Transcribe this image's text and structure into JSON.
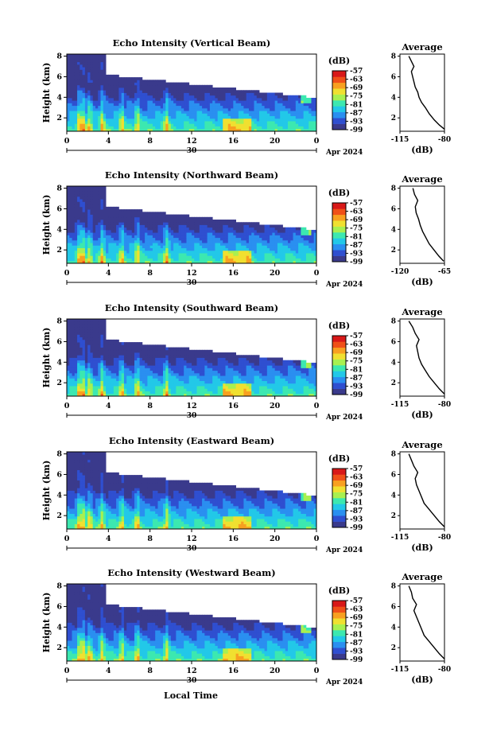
{
  "figure": {
    "xlabel": "Local Time",
    "date_label": "30",
    "month_label": "Apr 2024"
  },
  "chart_data": [
    {
      "type": "heatmap",
      "title": "Echo Intensity (Vertical Beam)",
      "ylabel": "Height (km)",
      "x_ticks": [
        "0",
        "4",
        "8",
        "12",
        "16",
        "20",
        "0"
      ],
      "x_range": [
        0,
        24
      ],
      "y_ticks": [
        "2",
        "4",
        "6",
        "8"
      ],
      "y_range": [
        0.7,
        8.2
      ],
      "colorbar": {
        "unit": "(dB)",
        "ticks": [
          "-57",
          "-63",
          "-69",
          "-75",
          "-81",
          "-87",
          "-93",
          "-99"
        ],
        "range": [
          -99,
          -57
        ]
      },
      "average": {
        "title": "Average",
        "xlabel": "(dB)",
        "x_ticks": [
          "-115",
          "-80"
        ],
        "x_range": [
          -115,
          -80
        ],
        "y_ticks": [
          "2",
          "4",
          "6",
          "8"
        ],
        "profile": [
          [
            -80,
            0.9
          ],
          [
            -84,
            1.3
          ],
          [
            -88,
            1.8
          ],
          [
            -92,
            2.4
          ],
          [
            -95,
            3.0
          ],
          [
            -98,
            3.5
          ],
          [
            -100,
            4.0
          ],
          [
            -101,
            4.5
          ],
          [
            -103,
            5.0
          ],
          [
            -104,
            5.5
          ],
          [
            -105,
            6.0
          ],
          [
            -106,
            6.5
          ],
          [
            -104,
            7.0
          ],
          [
            -106,
            7.5
          ],
          [
            -108,
            8.0
          ]
        ]
      }
    },
    {
      "type": "heatmap",
      "title": "Echo Intensity (Northward Beam)",
      "ylabel": "Height (km)",
      "x_ticks": [
        "0",
        "4",
        "8",
        "12",
        "16",
        "20",
        "0"
      ],
      "x_range": [
        0,
        24
      ],
      "y_ticks": [
        "2",
        "4",
        "6",
        "8"
      ],
      "y_range": [
        0.7,
        8.2
      ],
      "colorbar": {
        "unit": "(dB)",
        "ticks": [
          "-57",
          "-63",
          "-69",
          "-75",
          "-81",
          "-87",
          "-93",
          "-99"
        ],
        "range": [
          -99,
          -57
        ]
      },
      "average": {
        "title": "Average",
        "xlabel": "(dB)",
        "x_ticks": [
          "-120",
          "-65"
        ],
        "x_range": [
          -120,
          -65
        ],
        "y_ticks": [
          "2",
          "4",
          "6",
          "8"
        ],
        "profile": [
          [
            -66,
            0.9
          ],
          [
            -72,
            1.4
          ],
          [
            -78,
            2.0
          ],
          [
            -84,
            2.6
          ],
          [
            -88,
            3.2
          ],
          [
            -92,
            3.8
          ],
          [
            -95,
            4.4
          ],
          [
            -97,
            5.0
          ],
          [
            -100,
            5.6
          ],
          [
            -101,
            6.2
          ],
          [
            -98,
            6.8
          ],
          [
            -102,
            7.4
          ],
          [
            -104,
            8.0
          ]
        ]
      }
    },
    {
      "type": "heatmap",
      "title": "Echo Intensity (Southward Beam)",
      "ylabel": "Height (km)",
      "x_ticks": [
        "0",
        "4",
        "8",
        "12",
        "16",
        "20",
        "0"
      ],
      "x_range": [
        0,
        24
      ],
      "y_ticks": [
        "2",
        "4",
        "6",
        "8"
      ],
      "y_range": [
        0.7,
        8.2
      ],
      "colorbar": {
        "unit": "(dB)",
        "ticks": [
          "-57",
          "-63",
          "-69",
          "-75",
          "-81",
          "-87",
          "-93",
          "-99"
        ],
        "range": [
          -99,
          -57
        ]
      },
      "average": {
        "title": "Average",
        "xlabel": "(dB)",
        "x_ticks": [
          "-115",
          "-80"
        ],
        "x_range": [
          -115,
          -80
        ],
        "y_ticks": [
          "2",
          "4",
          "6",
          "8"
        ],
        "profile": [
          [
            -80,
            0.9
          ],
          [
            -84,
            1.4
          ],
          [
            -88,
            2.0
          ],
          [
            -92,
            2.6
          ],
          [
            -95,
            3.2
          ],
          [
            -98,
            3.8
          ],
          [
            -100,
            4.4
          ],
          [
            -101,
            5.0
          ],
          [
            -102,
            5.6
          ],
          [
            -100,
            6.2
          ],
          [
            -103,
            6.8
          ],
          [
            -105,
            7.4
          ],
          [
            -108,
            8.0
          ]
        ]
      }
    },
    {
      "type": "heatmap",
      "title": "Echo Intensity (Eastward Beam)",
      "ylabel": "Height (km)",
      "x_ticks": [
        "0",
        "4",
        "8",
        "12",
        "16",
        "20",
        "0"
      ],
      "x_range": [
        0,
        24
      ],
      "y_ticks": [
        "2",
        "4",
        "6",
        "8"
      ],
      "y_range": [
        0.7,
        8.2
      ],
      "colorbar": {
        "unit": "(dB)",
        "ticks": [
          "-57",
          "-63",
          "-69",
          "-75",
          "-81",
          "-87",
          "-93",
          "-99"
        ],
        "range": [
          -99,
          -57
        ]
      },
      "average": {
        "title": "Average",
        "xlabel": "(dB)",
        "x_ticks": [
          "-115",
          "-80"
        ],
        "x_range": [
          -115,
          -80
        ],
        "y_ticks": [
          "2",
          "4",
          "6",
          "8"
        ],
        "profile": [
          [
            -80,
            0.9
          ],
          [
            -84,
            1.4
          ],
          [
            -88,
            2.0
          ],
          [
            -92,
            2.6
          ],
          [
            -96,
            3.2
          ],
          [
            -98,
            3.8
          ],
          [
            -100,
            4.4
          ],
          [
            -102,
            5.0
          ],
          [
            -103,
            5.6
          ],
          [
            -101,
            6.2
          ],
          [
            -104,
            6.8
          ],
          [
            -106,
            7.4
          ],
          [
            -108,
            8.0
          ]
        ]
      }
    },
    {
      "type": "heatmap",
      "title": "Echo Intensity (Westward Beam)",
      "ylabel": "Height (km)",
      "x_ticks": [
        "0",
        "4",
        "8",
        "12",
        "16",
        "20",
        "0"
      ],
      "x_range": [
        0,
        24
      ],
      "y_ticks": [
        "2",
        "4",
        "6",
        "8"
      ],
      "y_range": [
        0.7,
        8.2
      ],
      "colorbar": {
        "unit": "(dB)",
        "ticks": [
          "-57",
          "-63",
          "-69",
          "-75",
          "-81",
          "-87",
          "-93",
          "-99"
        ],
        "range": [
          -99,
          -57
        ]
      },
      "average": {
        "title": "Average",
        "xlabel": "(dB)",
        "x_ticks": [
          "-115",
          "-80"
        ],
        "x_range": [
          -115,
          -80
        ],
        "y_ticks": [
          "2",
          "4",
          "6",
          "8"
        ],
        "profile": [
          [
            -80,
            0.9
          ],
          [
            -84,
            1.4
          ],
          [
            -88,
            2.0
          ],
          [
            -92,
            2.6
          ],
          [
            -96,
            3.2
          ],
          [
            -98,
            3.8
          ],
          [
            -100,
            4.4
          ],
          [
            -102,
            5.0
          ],
          [
            -104,
            5.6
          ],
          [
            -102,
            6.2
          ],
          [
            -105,
            6.8
          ],
          [
            -106,
            7.4
          ],
          [
            -108,
            8.0
          ]
        ]
      }
    }
  ],
  "colormap": [
    "#3a3a8c",
    "#2f4fd0",
    "#2a8ff0",
    "#22c8e8",
    "#3ce8b0",
    "#a8f050",
    "#f0e030",
    "#f8a020",
    "#f05018",
    "#d81818"
  ]
}
